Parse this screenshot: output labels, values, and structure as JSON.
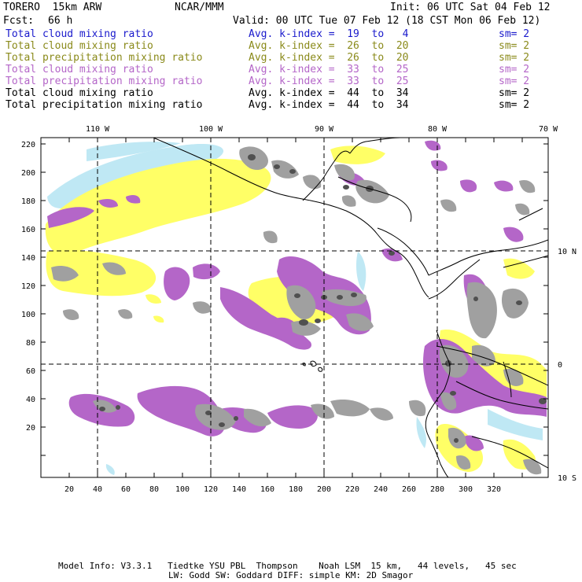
{
  "header": {
    "model": "TORERO  15km ARW",
    "org": "NCAR/MMM",
    "init": "Init: 06 UTC Sat 04 Feb 12",
    "fcst_label": "Fcst:",
    "fcst_value": "66 h",
    "valid": "Valid: 00 UTC Tue 07 Feb 12 (18 CST Mon 06 Feb 12)"
  },
  "legend": [
    {
      "field": "Total cloud mixing ratio",
      "kindex": "Avg. k-index =  19  to   4",
      "sm": "sm= 2",
      "color": "#1a1acc"
    },
    {
      "field": "Total cloud mixing ratio",
      "kindex": "Avg. k-index =  26  to  20",
      "sm": "sm= 2",
      "color": "#8a8a1a"
    },
    {
      "field": "Total precipitation mixing ratio",
      "kindex": "Avg. k-index =  26  to  20",
      "sm": "sm= 2",
      "color": "#8a8a1a"
    },
    {
      "field": "Total cloud mixing ratio",
      "kindex": "Avg. k-index =  33  to  25",
      "sm": "sm= 2",
      "color": "#b466c8"
    },
    {
      "field": "Total precipitation mixing ratio",
      "kindex": "Avg. k-index =  33  to  25",
      "sm": "sm= 2",
      "color": "#b466c8"
    },
    {
      "field": "Total cloud mixing ratio",
      "kindex": "Avg. k-index =  44  to  34",
      "sm": "sm= 2",
      "color": "#000000"
    },
    {
      "field": "Total precipitation mixing ratio",
      "kindex": "Avg. k-index =  44  to  34",
      "sm": "sm= 2",
      "color": "#000000"
    }
  ],
  "axes": {
    "top_lon": [
      "110 W",
      "100 W",
      "90 W",
      "80 W",
      "70 W"
    ],
    "right_lat": [
      "10 N",
      "0",
      "10 S"
    ],
    "left_ticks": [
      "220",
      "200",
      "180",
      "160",
      "140",
      "120",
      "100",
      "80",
      "60",
      "40",
      "20"
    ],
    "bottom_ticks": [
      "20",
      "40",
      "60",
      "80",
      "100",
      "120",
      "140",
      "160",
      "180",
      "200",
      "220",
      "240",
      "260",
      "280",
      "300",
      "320"
    ]
  },
  "colors": {
    "light_blue": "#bfe8f4",
    "yellow": "#ffff66",
    "purple": "#b466c8",
    "gray": "#a0a0a0",
    "dark_gray": "#505050"
  },
  "footer": {
    "line1": "Model Info: V3.3.1   Tiedtke YSU PBL  Thompson    Noah LSM  15 km,   44 levels,   45 sec",
    "line2": "LW: Godd SW: Goddard DIFF: simple KM: 2D Smagor"
  }
}
